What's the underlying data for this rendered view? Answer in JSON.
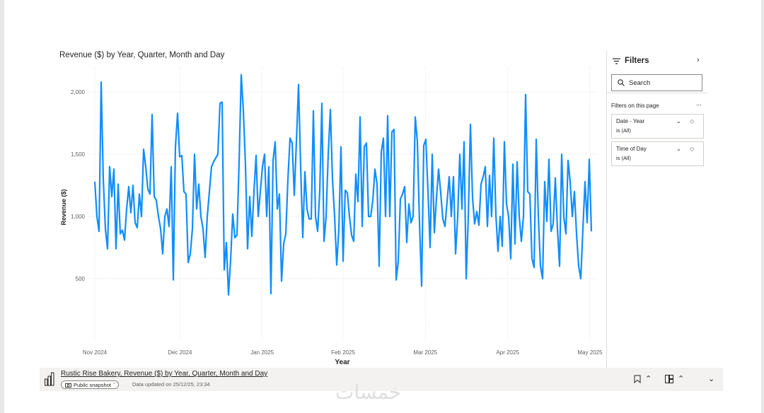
{
  "chart_data": {
    "type": "line",
    "title": "Revenue ($) by Year, Quarter, Month and Day",
    "xlabel": "Year",
    "ylabel": "Revenue ($)",
    "x_ticks": [
      "Nov 2024",
      "Dec 2024",
      "Jan 2025",
      "Feb 2025",
      "Mar 2025",
      "Apr 2025",
      "May 2025"
    ],
    "y_ticks": [
      "500",
      "1,000",
      "1,500",
      "2,000"
    ],
    "ylim": [
      0,
      2200
    ],
    "x_range": [
      "2024-11-01",
      "2025-05-01"
    ],
    "grid": true,
    "series": [
      {
        "color": "#118DFF",
        "values": [
          1280,
          1000,
          880,
          2080,
          1300,
          900,
          740,
          1400,
          1160,
          1380,
          740,
          1260,
          860,
          890,
          810,
          1060,
          1240,
          1030,
          1250,
          950,
          910,
          1180,
          1000,
          1540,
          1400,
          1220,
          1180,
          1820,
          1160,
          1130,
          1000,
          900,
          700,
          1000,
          1060,
          920,
          1400,
          490,
          1560,
          1830,
          1480,
          1490,
          1200,
          1180,
          630,
          700,
          900,
          1500,
          1060,
          1260,
          1000,
          900,
          670,
          1000,
          1200,
          1400,
          1440,
          1470,
          1500,
          1910,
          1920,
          570,
          790,
          370,
          650,
          1020,
          830,
          850,
          1440,
          2140,
          1850,
          1410,
          740,
          1160,
          840,
          1200,
          1490,
          1000,
          1200,
          1400,
          1500,
          1000,
          1400,
          380,
          1450,
          1600,
          1060,
          1180,
          480,
          780,
          860,
          1300,
          1630,
          1590,
          1170,
          1600,
          2060,
          1400,
          830,
          1360,
          1060,
          980,
          980,
          1850,
          1000,
          880,
          1200,
          1910,
          800,
          1000,
          1500,
          1860,
          1300,
          1000,
          610,
          900,
          1560,
          640,
          1210,
          1190,
          1000,
          850,
          800,
          1340,
          1120,
          1800,
          920,
          1560,
          1590,
          1000,
          1000,
          1130,
          1380,
          1260,
          600,
          1520,
          1630,
          1000,
          1810,
          1000,
          1680,
          1700,
          490,
          640,
          1140,
          1180,
          1240,
          790,
          1100,
          950,
          1000,
          1800,
          1600,
          950,
          440,
          1570,
          1620,
          1200,
          750,
          1500,
          870,
          1150,
          1380,
          1190,
          980,
          920,
          1120,
          1320,
          1000,
          1320,
          700,
          1000,
          1500,
          1060,
          1600,
          500,
          1000,
          1740,
          1150,
          940,
          1040,
          930,
          1260,
          1320,
          1400,
          920,
          1330,
          1000,
          1630,
          1010,
          720,
          1000,
          760,
          1600,
          1100,
          1000,
          660,
          1420,
          780,
          1440,
          1000,
          800,
          1000,
          1980,
          1200,
          1180,
          660,
          590,
          1620,
          1000,
          600,
          500,
          1280,
          960,
          1460,
          880,
          940,
          1310,
          900,
          600,
          1500,
          1000,
          860,
          1450,
          1280,
          1000,
          1200,
          860,
          600,
          500,
          900,
          1280,
          950,
          1460,
          880
        ]
      }
    ]
  },
  "filters": {
    "title": "Filters",
    "search_placeholder": "Search",
    "section_label": "Filters on this page",
    "more_label": "...",
    "cards": [
      {
        "name": "Date - Year",
        "value": "is (All)"
      },
      {
        "name": "Time of Day",
        "value": "is (All)"
      }
    ]
  },
  "footer": {
    "report_title": "Rustic Rise Bakery, Revenue ($) by Year, Quarter, Month and Day",
    "snapshot_label": "Public snapshot",
    "updated_text": "Data updated on 25/12/25, 23:34"
  },
  "watermark": "خمسات",
  "icons": {
    "filter": "filter-icon",
    "collapse": "collapse-pane-icon",
    "search": "search-icon",
    "chevron": "chevron-down-icon",
    "eraser": "clear-filter-icon",
    "report": "bar-chart-icon",
    "camera": "camera-icon",
    "bookmark": "bookmark-icon",
    "view": "view-icon"
  }
}
